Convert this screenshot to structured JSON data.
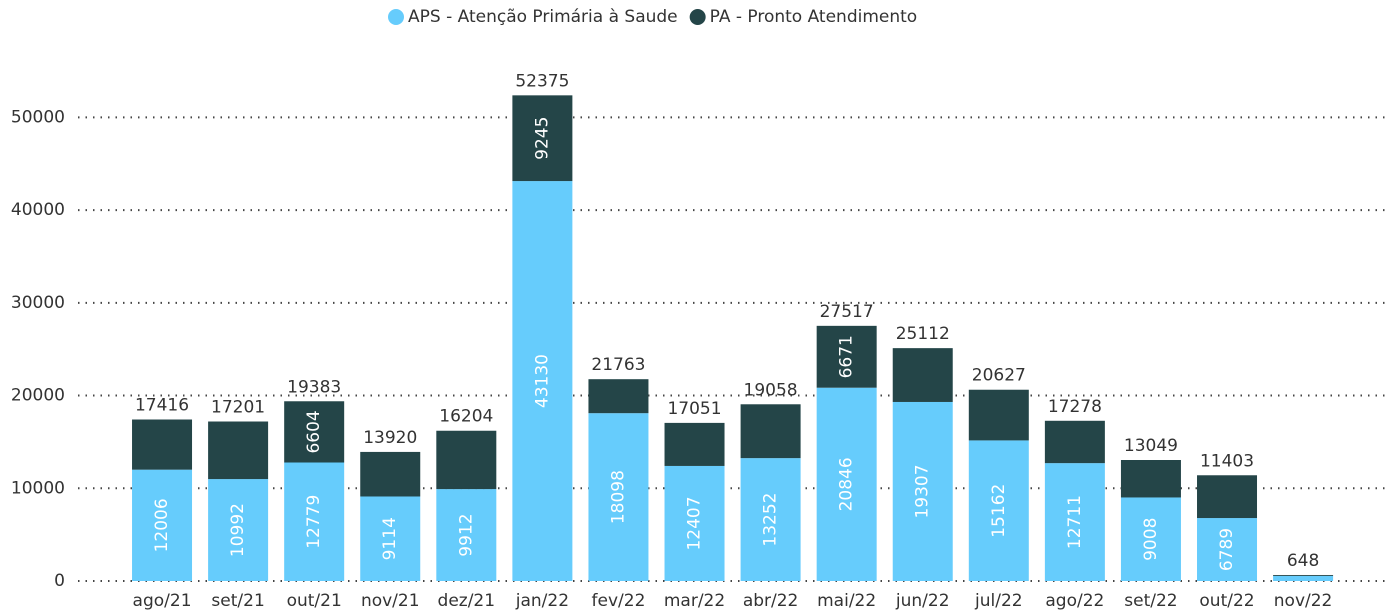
{
  "chart_data": {
    "type": "stacked_bar",
    "categories": [
      "ago/21",
      "set/21",
      "out/21",
      "nov/21",
      "dez/21",
      "jan/22",
      "fev/22",
      "mar/22",
      "abr/22",
      "mai/22",
      "jun/22",
      "jul/22",
      "ago/22",
      "set/22",
      "out/22",
      "nov/22"
    ],
    "series": [
      {
        "name": "APS - Atenção Primária à Saude",
        "color": "#66ccfc",
        "values": [
          12006,
          10992,
          12779,
          9114,
          9912,
          43130,
          18098,
          12407,
          13252,
          20846,
          19307,
          15162,
          12711,
          9008,
          6789,
          550
        ],
        "value_labels": [
          "12006",
          "10992",
          "12779",
          "9114",
          "9912",
          "43130",
          "18098",
          "12407",
          "13252",
          "20846",
          "19307",
          "15162",
          "12711",
          "9008",
          "6789",
          null
        ]
      },
      {
        "name": "PA - Pronto Atendimento",
        "color": "#244548",
        "values": [
          5410,
          6209,
          6604,
          4806,
          6292,
          9245,
          3665,
          4644,
          5806,
          6671,
          5805,
          5465,
          4567,
          4041,
          4614,
          98
        ],
        "value_labels": [
          null,
          null,
          "6604",
          null,
          null,
          "9245",
          null,
          null,
          null,
          "6671",
          null,
          null,
          null,
          null,
          null,
          null
        ]
      }
    ],
    "totals": [
      "17416",
      "17201",
      "19383",
      "13920",
      "16204",
      "52375",
      "21763",
      "17051",
      "19058",
      "27517",
      "25112",
      "20627",
      "17278",
      "13049",
      "11403",
      "648"
    ],
    "ylim": [
      0,
      55000
    ],
    "yticks": [
      0,
      10000,
      20000,
      30000,
      40000,
      50000
    ],
    "grid": true,
    "legend": "top"
  }
}
